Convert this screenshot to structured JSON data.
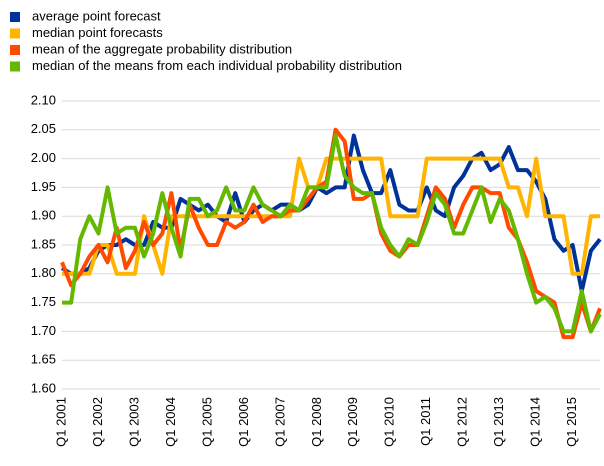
{
  "chart_data": {
    "type": "line",
    "categories": [
      "Q1 2001",
      null,
      null,
      null,
      "Q1 2002",
      null,
      null,
      null,
      "Q1 2003",
      null,
      null,
      null,
      "Q1 2004",
      null,
      null,
      null,
      "Q1 2005",
      null,
      null,
      null,
      "Q1 2006",
      null,
      null,
      null,
      "Q1 2007",
      null,
      null,
      null,
      "Q1 2008",
      null,
      null,
      null,
      "Q1 2009",
      null,
      null,
      null,
      "Q1 2010",
      null,
      null,
      null,
      "Q1 2011",
      null,
      null,
      null,
      "Q1 2012",
      null,
      null,
      null,
      "Q1 2013",
      null,
      null,
      null,
      "Q1 2014",
      null,
      null,
      null,
      "Q1 2015",
      null,
      null,
      null
    ],
    "series": [
      {
        "name": "average point forecast",
        "color": "#003299",
        "values": [
          1.81,
          1.8,
          1.8,
          1.81,
          1.84,
          1.85,
          1.85,
          1.86,
          1.85,
          1.85,
          1.89,
          1.88,
          1.88,
          1.93,
          1.92,
          1.91,
          1.92,
          1.9,
          1.89,
          1.94,
          1.89,
          1.91,
          1.92,
          1.91,
          1.92,
          1.92,
          1.91,
          1.92,
          1.95,
          1.94,
          1.95,
          1.95,
          2.04,
          1.98,
          1.94,
          1.94,
          1.98,
          1.92,
          1.91,
          1.91,
          1.95,
          1.91,
          1.9,
          1.95,
          1.97,
          2.0,
          2.01,
          1.98,
          1.99,
          2.02,
          1.98,
          1.98,
          1.96,
          1.93,
          1.86,
          1.84,
          1.85,
          1.77,
          1.84,
          1.86
        ]
      },
      {
        "name": "median point forecasts",
        "color": "#ffb400",
        "values": [
          1.8,
          1.8,
          1.8,
          1.8,
          1.85,
          1.85,
          1.8,
          1.8,
          1.8,
          1.9,
          1.85,
          1.8,
          1.9,
          1.9,
          1.9,
          1.9,
          1.9,
          1.9,
          1.9,
          1.9,
          1.9,
          1.9,
          1.9,
          1.9,
          1.9,
          1.9,
          2.0,
          1.95,
          1.95,
          2.0,
          2.0,
          2.0,
          2.0,
          2.0,
          2.0,
          2.0,
          1.9,
          1.9,
          1.9,
          1.9,
          2.0,
          2.0,
          2.0,
          2.0,
          2.0,
          2.0,
          2.0,
          2.0,
          2.0,
          1.95,
          1.95,
          1.9,
          2.0,
          1.9,
          1.9,
          1.9,
          1.8,
          1.8,
          1.9,
          1.9
        ]
      },
      {
        "name": "mean of the aggregate probability distribution",
        "color": "#ff4b00",
        "values": [
          1.82,
          1.78,
          1.8,
          1.83,
          1.85,
          1.82,
          1.88,
          1.81,
          1.84,
          1.89,
          1.85,
          1.87,
          1.94,
          1.84,
          1.92,
          1.88,
          1.85,
          1.85,
          1.89,
          1.88,
          1.89,
          1.92,
          1.89,
          1.9,
          1.9,
          1.91,
          1.91,
          1.93,
          1.95,
          1.96,
          2.05,
          2.03,
          1.93,
          1.93,
          1.94,
          1.87,
          1.84,
          1.83,
          1.85,
          1.85,
          1.9,
          1.95,
          1.93,
          1.88,
          1.92,
          1.95,
          1.95,
          1.94,
          1.94,
          1.88,
          1.86,
          1.82,
          1.77,
          1.76,
          1.75,
          1.69,
          1.69,
          1.75,
          1.7,
          1.74
        ]
      },
      {
        "name": "median of the means from each individual probability distribution",
        "color": "#65b800",
        "values": [
          1.75,
          1.75,
          1.86,
          1.9,
          1.87,
          1.95,
          1.87,
          1.88,
          1.88,
          1.83,
          1.87,
          1.94,
          1.88,
          1.83,
          1.93,
          1.93,
          1.9,
          1.91,
          1.95,
          1.91,
          1.91,
          1.95,
          1.92,
          1.91,
          1.9,
          1.92,
          1.91,
          1.95,
          1.95,
          1.95,
          2.04,
          1.97,
          1.95,
          1.94,
          1.94,
          1.88,
          1.85,
          1.83,
          1.86,
          1.85,
          1.89,
          1.94,
          1.92,
          1.87,
          1.87,
          1.91,
          1.95,
          1.89,
          1.93,
          1.91,
          1.86,
          1.8,
          1.75,
          1.76,
          1.74,
          1.7,
          1.7,
          1.77,
          1.7,
          1.73
        ]
      }
    ],
    "ylim": [
      1.6,
      2.1
    ],
    "yticks": [
      {
        "value": 1.6,
        "label": "1.60"
      },
      1.65,
      {
        "value": 1.7,
        "label": "1.70"
      },
      1.75,
      {
        "value": 1.8,
        "label": "1.80"
      },
      1.85,
      {
        "value": 1.9,
        "label": "1.90"
      },
      1.95,
      {
        "value": 2,
        "label": "2.00"
      },
      2.05,
      {
        "value": 2.1,
        "label": "2.10"
      }
    ],
    "grid": true
  }
}
